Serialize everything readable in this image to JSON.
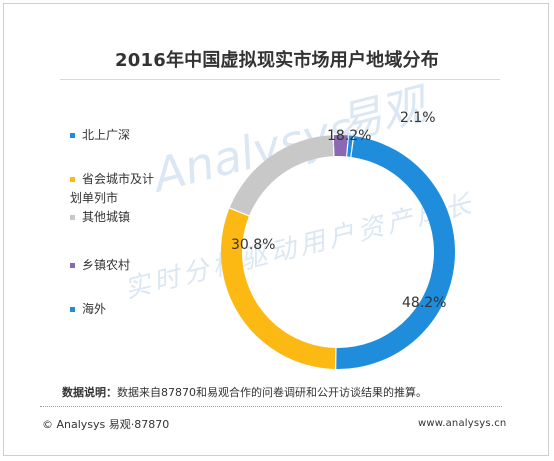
{
  "chart_data": {
    "type": "pie",
    "title": "2016年中国虚拟现实市场用户地域分布",
    "categories": [
      "北上广深",
      "省会城市及计划单列市",
      "其他城镇",
      "乡镇农村",
      "海外"
    ],
    "values": [
      48.2,
      30.8,
      18.2,
      2.1,
      0.7
    ],
    "data_labels": [
      "48.2%",
      "30.8%",
      "18.2%",
      "2.1%",
      ""
    ],
    "colors": [
      "#1f8ddb",
      "#fcb813",
      "#c8c8c8",
      "#8a68b3",
      "#1f8ddb"
    ],
    "legend_position": "left"
  },
  "legend": [
    {
      "label_lines": [
        "北上广深"
      ],
      "color": "#1f8ddb"
    },
    {
      "label_lines": [
        "省会城市及计",
        "划单列市"
      ],
      "color": "#fcb813"
    },
    {
      "label_lines": [
        "其他城镇"
      ],
      "color": "#c8c8c8"
    },
    {
      "label_lines": [
        "乡镇农村"
      ],
      "color": "#8a68b3"
    },
    {
      "label_lines": [
        "海外"
      ],
      "color": "#1f8ddb"
    }
  ],
  "watermark": {
    "brand": "Analysys",
    "brand_cn": "易观",
    "slogan": "实时分析驱动用户资产成长"
  },
  "note": {
    "label": "数据说明：",
    "text": "数据来自87870和易观合作的问卷调研和公开访谈结果的推算。"
  },
  "footer": {
    "left": "© Analysys 易观·87870",
    "right": "www.analysys.cn"
  }
}
